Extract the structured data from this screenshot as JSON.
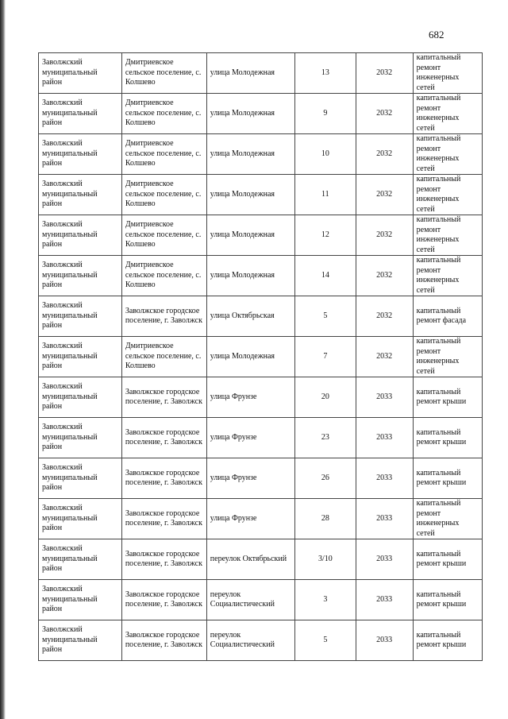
{
  "page_number": "682",
  "rows": [
    {
      "district": "Заволжский муниципальный район",
      "settlement": "Дмитриевское сельское поселение, с. Колшево",
      "street": "улица Молодежная",
      "house": "13",
      "year": "2032",
      "work": "капитальный ремонт инженерных сетей"
    },
    {
      "district": "Заволжский муниципальный район",
      "settlement": "Дмитриевское сельское поселение, с. Колшево",
      "street": "улица Молодежная",
      "house": "9",
      "year": "2032",
      "work": "капитальный ремонт инженерных сетей"
    },
    {
      "district": "Заволжский муниципальный район",
      "settlement": "Дмитриевское сельское поселение, с. Колшево",
      "street": "улица Молодежная",
      "house": "10",
      "year": "2032",
      "work": "капитальный ремонт инженерных сетей"
    },
    {
      "district": "Заволжский муниципальный район",
      "settlement": "Дмитриевское сельское поселение, с. Колшево",
      "street": "улица Молодежная",
      "house": "11",
      "year": "2032",
      "work": "капитальный ремонт инженерных сетей"
    },
    {
      "district": "Заволжский муниципальный район",
      "settlement": "Дмитриевское сельское поселение, с. Колшево",
      "street": "улица Молодежная",
      "house": "12",
      "year": "2032",
      "work": "капитальный ремонт инженерных сетей"
    },
    {
      "district": "Заволжский муниципальный район",
      "settlement": "Дмитриевское сельское поселение, с. Колшево",
      "street": "улица Молодежная",
      "house": "14",
      "year": "2032",
      "work": "капитальный ремонт инженерных сетей"
    },
    {
      "district": "Заволжский муниципальный район",
      "settlement": "Заволжское городское поселение, г. Заволжск",
      "street": "улица Октябрьская",
      "house": "5",
      "year": "2032",
      "work": "капитальный ремонт фасада"
    },
    {
      "district": "Заволжский муниципальный район",
      "settlement": "Дмитриевское сельское поселение, с. Колшево",
      "street": "улица Молодежная",
      "house": "7",
      "year": "2032",
      "work": "капитальный ремонт инженерных сетей"
    },
    {
      "district": "Заволжский муниципальный район",
      "settlement": "Заволжское городское поселение, г. Заволжск",
      "street": "улица Фрунзе",
      "house": "20",
      "year": "2033",
      "work": "капитальный ремонт крыши"
    },
    {
      "district": "Заволжский муниципальный район",
      "settlement": "Заволжское городское поселение, г. Заволжск",
      "street": "улица Фрунзе",
      "house": "23",
      "year": "2033",
      "work": "капитальный ремонт крыши"
    },
    {
      "district": "Заволжский муниципальный район",
      "settlement": "Заволжское городское поселение, г. Заволжск",
      "street": "улица Фрунзе",
      "house": "26",
      "year": "2033",
      "work": "капитальный ремонт крыши"
    },
    {
      "district": "Заволжский муниципальный район",
      "settlement": "Заволжское городское поселение, г. Заволжск",
      "street": "улица Фрунзе",
      "house": "28",
      "year": "2033",
      "work": "капитальный ремонт инженерных сетей"
    },
    {
      "district": "Заволжский муниципальный район",
      "settlement": "Заволжское городское поселение, г. Заволжск",
      "street": "переулок  Октябрьский",
      "house": "3/10",
      "year": "2033",
      "work": "капитальный ремонт крыши"
    },
    {
      "district": "Заволжский муниципальный район",
      "settlement": "Заволжское городское поселение, г. Заволжск",
      "street": "переулок Социалистический",
      "house": "3",
      "year": "2033",
      "work": "капитальный ремонт крыши"
    },
    {
      "district": "Заволжский муниципальный район",
      "settlement": "Заволжское городское поселение, г. Заволжск",
      "street": "переулок Социалистический",
      "house": "5",
      "year": "2033",
      "work": "капитальный ремонт крыши"
    }
  ]
}
